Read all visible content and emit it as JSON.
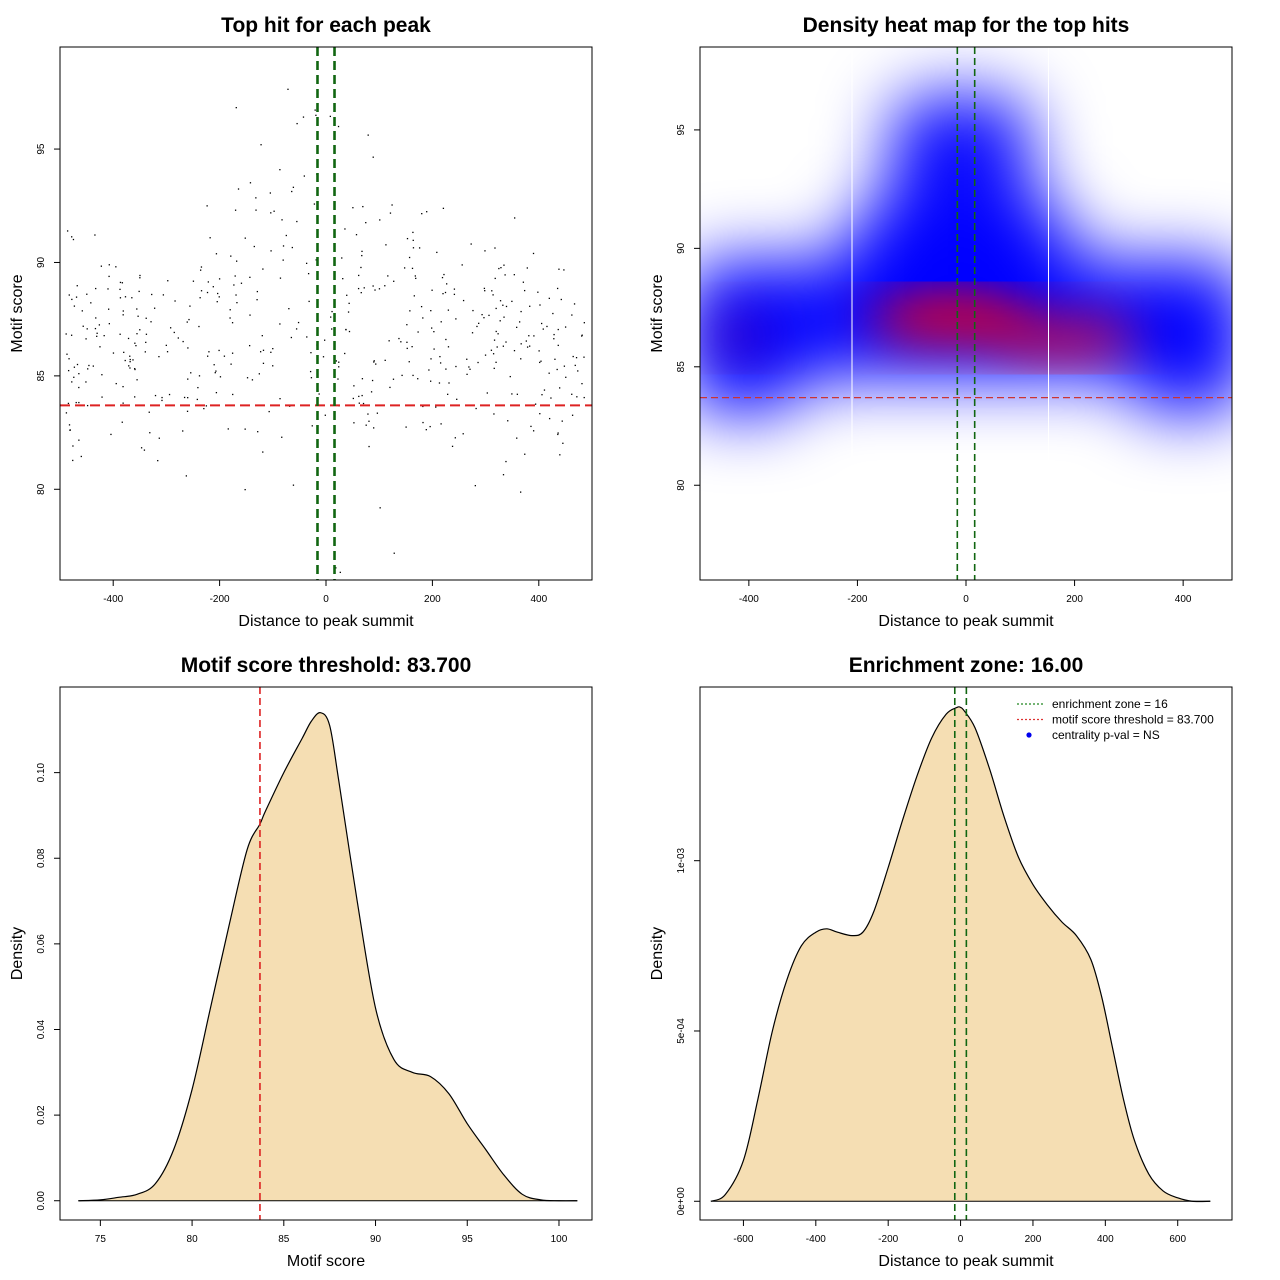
{
  "chart_data": [
    {
      "id": "scatter",
      "type": "scatter",
      "title": "Top hit for each peak",
      "xlabel": "Distance to peak summit",
      "ylabel": "Motif score",
      "xlim": [
        -500,
        500
      ],
      "ylim": [
        76,
        99.5
      ],
      "xticks": [
        -400,
        -200,
        0,
        200,
        400
      ],
      "yticks": [
        80,
        85,
        90,
        95
      ],
      "hlines": [
        {
          "y": 83.7,
          "color": "#dd2222",
          "style": "dashed"
        }
      ],
      "vlines": [
        {
          "x": -16,
          "color": "#116611",
          "style": "dashed"
        },
        {
          "x": 16,
          "color": "#116611",
          "style": "dashed"
        }
      ],
      "point_color": "#000000",
      "n_points": 520
    },
    {
      "id": "heatmap",
      "type": "heatmap",
      "title": "Density heat map for the top hits",
      "xlabel": "Distance to peak summit",
      "ylabel": "Motif score",
      "xlim": [
        -490,
        490
      ],
      "ylim": [
        76,
        98.5
      ],
      "xticks": [
        -400,
        -200,
        0,
        200,
        400
      ],
      "yticks": [
        80,
        85,
        90,
        95
      ],
      "hlines": [
        {
          "y": 83.7,
          "color": "#cc3333",
          "style": "dashed"
        }
      ],
      "vlines": [
        {
          "x": -16,
          "color": "#116611",
          "style": "dashed"
        },
        {
          "x": 16,
          "color": "#116611",
          "style": "dashed"
        }
      ],
      "white_lines_x": [
        -210,
        152
      ],
      "colors": [
        "#ffffff",
        "#0000ff",
        "#ff0000"
      ]
    },
    {
      "id": "score-density",
      "type": "area",
      "title": "Motif score threshold: 83.700",
      "xlabel": "Motif score",
      "ylabel": "Density",
      "xlim": [
        72.8,
        101.8
      ],
      "ylim": [
        -0.0045,
        0.12
      ],
      "xticks": [
        75,
        80,
        85,
        90,
        95,
        100
      ],
      "yticks": [
        0,
        0.02,
        0.04,
        0.06,
        0.08,
        0.1
      ],
      "ytick_labels": [
        "0.00",
        "0.02",
        "0.04",
        "0.06",
        "0.08",
        "0.10"
      ],
      "x": [
        73.8,
        75,
        76,
        77,
        78,
        79,
        80,
        81,
        82,
        83,
        83.7,
        84,
        85,
        86,
        86.5,
        87,
        87.5,
        88,
        89,
        90,
        91,
        92,
        93,
        94,
        95,
        96,
        97,
        98,
        99,
        100,
        101
      ],
      "values": [
        0,
        0.0002,
        0.0008,
        0.0015,
        0.004,
        0.012,
        0.026,
        0.045,
        0.064,
        0.082,
        0.088,
        0.091,
        0.1,
        0.108,
        0.112,
        0.114,
        0.111,
        0.098,
        0.07,
        0.045,
        0.033,
        0.03,
        0.029,
        0.025,
        0.018,
        0.012,
        0.006,
        0.0015,
        0.0002,
        0,
        0
      ],
      "fill": "#f5deb3",
      "vlines": [
        {
          "x": 83.7,
          "color": "#dd2222",
          "style": "dashed"
        }
      ]
    },
    {
      "id": "distance-density",
      "type": "area",
      "title": "Enrichment zone: 16.00",
      "xlabel": "Distance to peak summit",
      "ylabel": "Density",
      "xlim": [
        -720,
        750
      ],
      "ylim": [
        -5.5e-05,
        0.00151
      ],
      "xticks": [
        -600,
        -400,
        -200,
        0,
        200,
        400,
        600
      ],
      "yticks": [
        0,
        0.0005,
        0.001
      ],
      "ytick_labels": [
        "0e+00",
        "5e-04",
        "1e-03"
      ],
      "x": [
        -690,
        -650,
        -600,
        -560,
        -520,
        -480,
        -440,
        -400,
        -370,
        -340,
        -300,
        -270,
        -240,
        -200,
        -160,
        -120,
        -80,
        -40,
        -10,
        0,
        10,
        40,
        80,
        120,
        160,
        200,
        240,
        280,
        320,
        360,
        390,
        420,
        450,
        480,
        520,
        560,
        600,
        640,
        690
      ],
      "values": [
        0,
        2e-05,
        0.00012,
        0.0003,
        0.0005,
        0.00065,
        0.00075,
        0.00079,
        0.0008,
        0.00079,
        0.00078,
        0.00079,
        0.00085,
        0.00098,
        0.00112,
        0.00125,
        0.00136,
        0.00143,
        0.00145,
        0.00145,
        0.00144,
        0.00139,
        0.00127,
        0.00113,
        0.00101,
        0.00093,
        0.00087,
        0.00082,
        0.00078,
        0.00071,
        0.0006,
        0.00045,
        0.0003,
        0.00018,
        8e-05,
        3e-05,
        1e-05,
        0,
        0
      ],
      "fill": "#f5deb3",
      "vlines": [
        {
          "x": -16,
          "color": "#116611",
          "style": "dashed"
        },
        {
          "x": 16,
          "color": "#116611",
          "style": "dashed"
        }
      ],
      "legend": {
        "position": "top-right",
        "items": [
          {
            "label": "enrichment zone = 16",
            "color": "#228822",
            "style": "dotted"
          },
          {
            "label": "motif score threshold = 83.700",
            "color": "#dd3333",
            "style": "dotted"
          },
          {
            "label": "centrality p-val = NS",
            "color": "#0000ee",
            "style": "point"
          }
        ]
      }
    }
  ]
}
